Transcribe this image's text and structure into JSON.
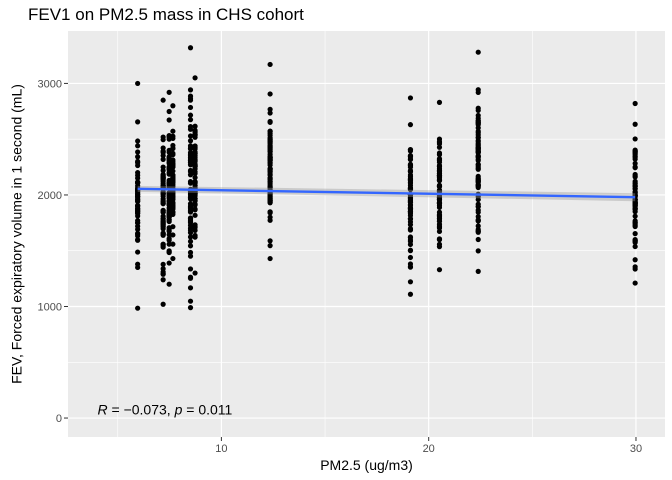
{
  "chart_data": {
    "type": "scatter",
    "title": "FEV1 on PM2.5 mass in CHS cohort",
    "xlabel": "PM2.5 (ug/m3)",
    "ylabel": "FEV, Forced expiratory volume in 1 second (mL)",
    "xlim": [
      2.6,
      31.4
    ],
    "ylim": [
      -170,
      3470
    ],
    "x_ticks": [
      10,
      20,
      30
    ],
    "y_ticks": [
      0,
      1000,
      2000,
      3000
    ],
    "grid": true,
    "legend": "none",
    "point_color": "#000000",
    "panel_color": "#ebebeb",
    "points_by_x": [
      {
        "x": 5.96,
        "n": 60,
        "min": 985,
        "max": 3000
      },
      {
        "x": 7.19,
        "n": 70,
        "min": 1020,
        "max": 2850
      },
      {
        "x": 7.48,
        "n": 75,
        "min": 1200,
        "max": 2920
      },
      {
        "x": 7.66,
        "n": 60,
        "min": 1430,
        "max": 2800
      },
      {
        "x": 8.51,
        "n": 70,
        "min": 990,
        "max": 3320
      },
      {
        "x": 8.73,
        "n": 60,
        "min": 1300,
        "max": 3050
      },
      {
        "x": 12.35,
        "n": 80,
        "min": 1430,
        "max": 3170
      },
      {
        "x": 19.12,
        "n": 80,
        "min": 1110,
        "max": 2870
      },
      {
        "x": 20.52,
        "n": 75,
        "min": 1330,
        "max": 2830
      },
      {
        "x": 22.39,
        "n": 80,
        "min": 1315,
        "max": 3280
      },
      {
        "x": 29.96,
        "n": 75,
        "min": 1210,
        "max": 2820
      }
    ],
    "regression_line": {
      "x": [
        5.96,
        29.96
      ],
      "y": [
        2055,
        1980
      ],
      "color": "#3366ff"
    },
    "annotation": {
      "x": 3.3,
      "y": 30,
      "prefix": "R",
      "text": " = −0.073, ",
      "p_symbol": "p",
      "p_text": " = 0.011"
    }
  }
}
